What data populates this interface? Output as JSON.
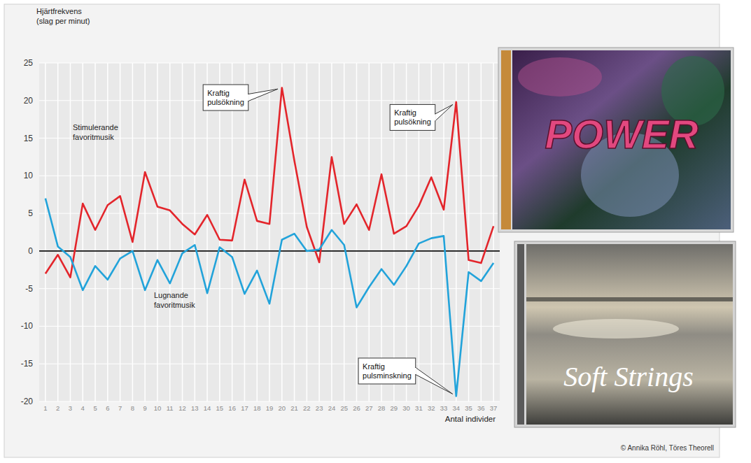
{
  "chart_data": {
    "type": "line",
    "y_label": "Hjärtfrekvens\n(slag per minut)",
    "x_label": "Antal individer",
    "categories": [
      "1",
      "2",
      "3",
      "4",
      "5",
      "6",
      "7",
      "8",
      "9",
      "10",
      "11",
      "12",
      "13",
      "14",
      "15",
      "16",
      "17",
      "18",
      "19",
      "20",
      "21",
      "22",
      "23",
      "24",
      "25",
      "26",
      "27",
      "28",
      "29",
      "30",
      "31",
      "32",
      "33",
      "34",
      "35",
      "36",
      "37"
    ],
    "series": [
      {
        "name": "Stimulerande\nfavoritmusik",
        "color": "#e3252b",
        "values": [
          -3,
          -0.5,
          -3.5,
          6.3,
          2.8,
          6.1,
          7.3,
          1.2,
          10.5,
          5.9,
          5.4,
          3.6,
          2.2,
          4.8,
          1.5,
          1.4,
          9.5,
          4,
          3.6,
          21.7,
          12,
          3.2,
          -1.5,
          12.5,
          3.6,
          6.2,
          2.8,
          10.2,
          2.3,
          3.3,
          6,
          9.8,
          5.5,
          19.8,
          -1.2,
          -1.6,
          3.3
        ]
      },
      {
        "name": "Lugnande\nfavoritmusik",
        "color": "#22a3da",
        "values": [
          7,
          0.6,
          -0.8,
          -5.2,
          -2,
          -3.8,
          -1,
          0,
          -5.2,
          -1.2,
          -4.3,
          -0.3,
          0.8,
          -5.6,
          0.5,
          -0.8,
          -5.7,
          -2.6,
          -7,
          1.5,
          2.3,
          0,
          0.2,
          2.8,
          0.8,
          -7.5,
          -4.8,
          -2.4,
          -4.5,
          -2,
          1,
          1.7,
          2,
          -19.3,
          -2.8,
          -4,
          -1.6
        ]
      }
    ],
    "ylim": [
      -20,
      25
    ],
    "yticks": [
      -20,
      -15,
      -10,
      -5,
      0,
      5,
      10,
      15,
      20,
      25
    ],
    "grid": true,
    "annotations": [
      {
        "text": "Kraftig\npulsökning",
        "x": "20",
        "y": 21.7
      },
      {
        "text": "Kraftig\npulsökning",
        "x": "34",
        "y": 19.8
      },
      {
        "text": "Kraftig\npulsminskning",
        "x": "34",
        "y": -19.3
      }
    ],
    "source": "© Annika Röhl, Töres Theorell"
  },
  "covers": [
    "POWER",
    "Soft Strings"
  ]
}
